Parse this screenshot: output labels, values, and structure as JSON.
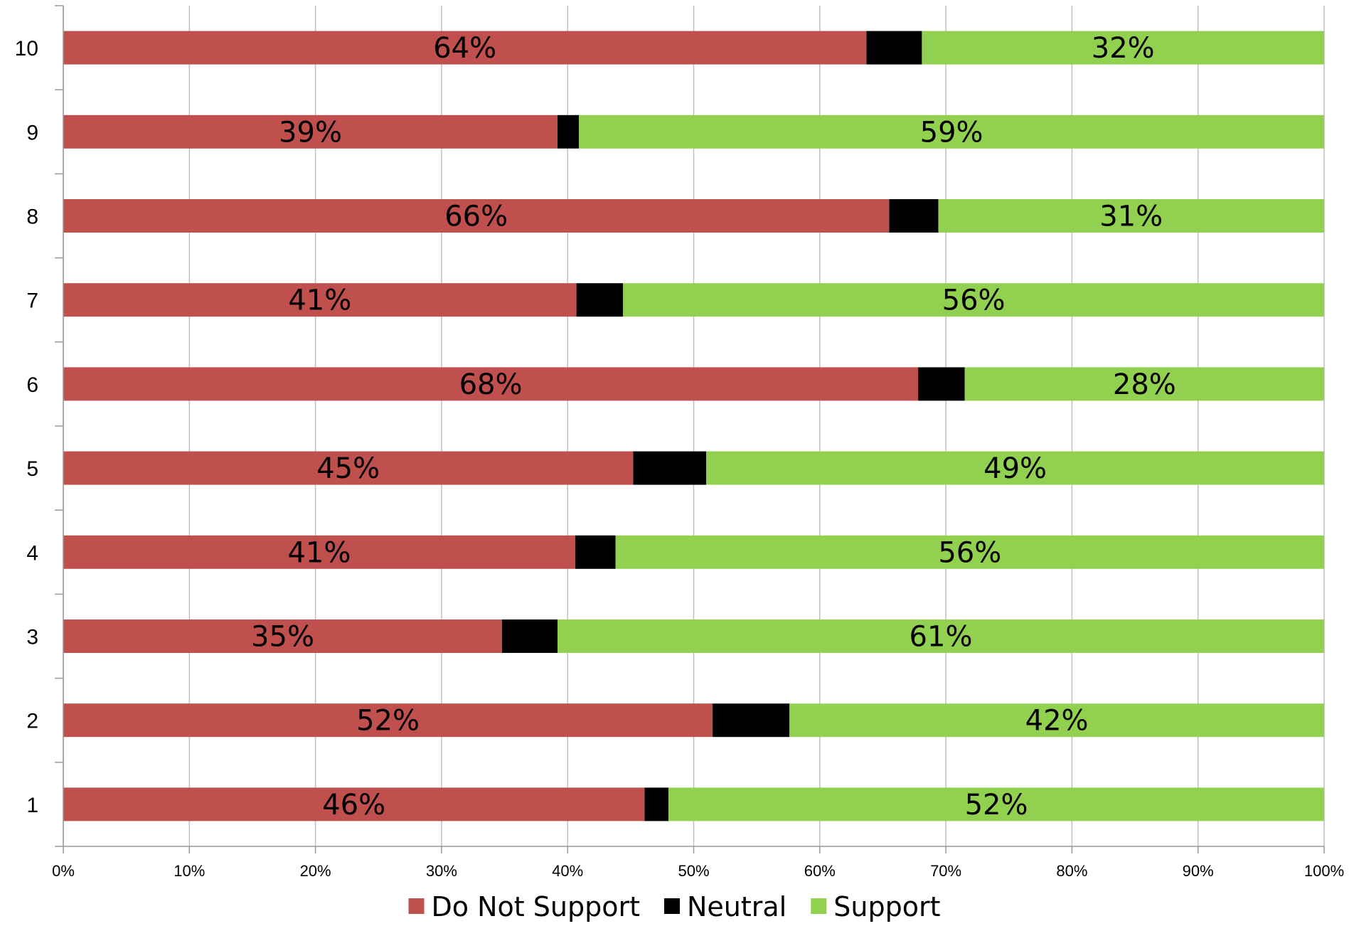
{
  "chart_data": {
    "type": "bar",
    "orientation": "horizontal",
    "stacked": true,
    "categories": [
      "1",
      "2",
      "3",
      "4",
      "5",
      "6",
      "7",
      "8",
      "9",
      "10"
    ],
    "series": [
      {
        "name": "Do Not Support",
        "color": "#c0504d",
        "values": [
          46.1,
          51.5,
          34.8,
          40.6,
          45.2,
          67.8,
          40.7,
          65.5,
          39.2,
          63.7
        ],
        "labels": [
          "46%",
          "52%",
          "35%",
          "41%",
          "45%",
          "68%",
          "41%",
          "66%",
          "39%",
          "64%"
        ]
      },
      {
        "name": "Neutral",
        "color": "#000000",
        "values": [
          1.9,
          6.1,
          4.4,
          3.2,
          5.8,
          3.7,
          3.7,
          3.9,
          1.7,
          4.4
        ],
        "labels": [
          "",
          "",
          "",
          "",
          "",
          "",
          "",
          "",
          "",
          ""
        ]
      },
      {
        "name": "Support",
        "color": "#92d050",
        "values": [
          52.0,
          42.4,
          60.8,
          56.2,
          49.0,
          28.5,
          55.6,
          30.6,
          59.1,
          31.9
        ],
        "labels": [
          "52%",
          "42%",
          "61%",
          "56%",
          "49%",
          "28%",
          "56%",
          "31%",
          "59%",
          "32%"
        ]
      }
    ],
    "xlim": [
      0,
      100
    ],
    "xticks": [
      "0%",
      "10%",
      "20%",
      "30%",
      "40%",
      "50%",
      "60%",
      "70%",
      "80%",
      "90%",
      "100%"
    ],
    "xlabel": "",
    "ylabel": "",
    "title": "",
    "grid": "vertical",
    "legend_position": "bottom"
  }
}
